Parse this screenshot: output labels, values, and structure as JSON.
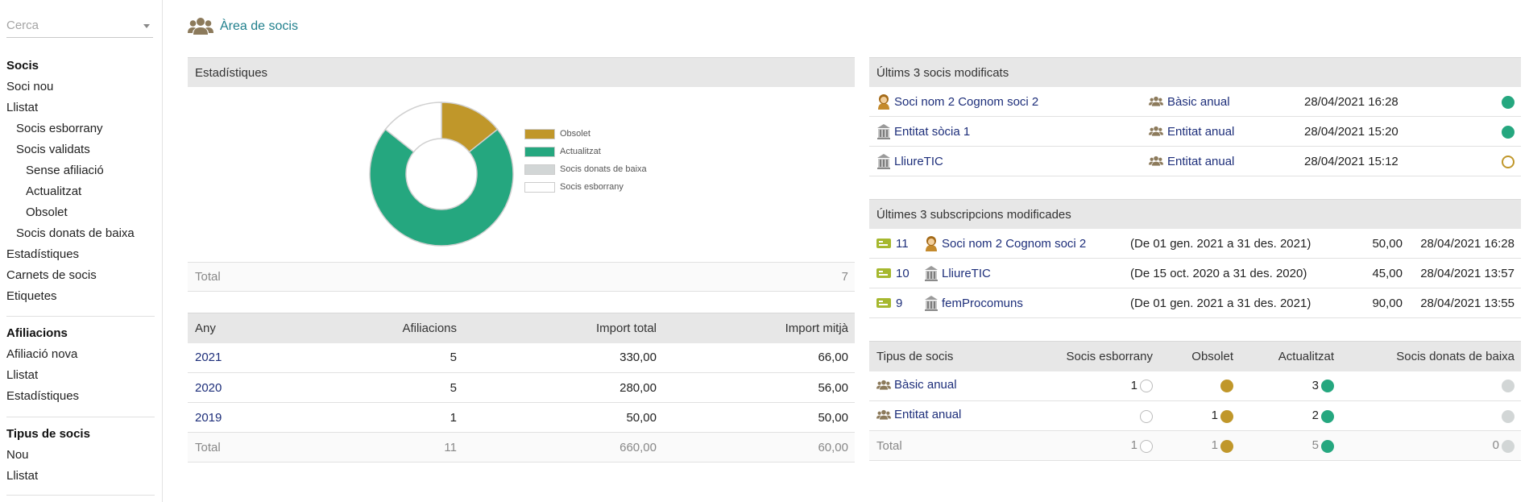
{
  "sidebar": {
    "search_placeholder": "Cerca",
    "sections": [
      {
        "title": "Socis",
        "items": [
          {
            "label": "Soci nou",
            "level": 0
          },
          {
            "label": "Llistat",
            "level": 0
          },
          {
            "label": "Socis esborrany",
            "level": 1
          },
          {
            "label": "Socis validats",
            "level": 1
          },
          {
            "label": "Sense afiliació",
            "level": 2
          },
          {
            "label": "Actualitzat",
            "level": 2
          },
          {
            "label": "Obsolet",
            "level": 2
          },
          {
            "label": "Socis donats de baixa",
            "level": 1
          },
          {
            "label": "Estadístiques",
            "level": 0
          },
          {
            "label": "Carnets de socis",
            "level": 0
          },
          {
            "label": "Etiquetes",
            "level": 0
          }
        ]
      },
      {
        "title": "Afiliacions",
        "items": [
          {
            "label": "Afiliació nova",
            "level": 0
          },
          {
            "label": "Llistat",
            "level": 0
          },
          {
            "label": "Estadístiques",
            "level": 0
          }
        ]
      },
      {
        "title": "Tipus de socis",
        "items": [
          {
            "label": "Nou",
            "level": 0
          },
          {
            "label": "Llistat",
            "level": 0
          }
        ]
      }
    ]
  },
  "header": {
    "title": "Àrea de socis",
    "icon": "users-icon"
  },
  "stats": {
    "heading": "Estadístiques",
    "total_label": "Total",
    "total_value": "7"
  },
  "chart_data": {
    "type": "pie",
    "categories": [
      "Obsolet",
      "Actualitzat",
      "Socis donats de baixa",
      "Socis esborrany"
    ],
    "values": [
      1,
      5,
      0,
      1
    ],
    "colors": [
      "#c0972a",
      "#25a77f",
      "#d2d6d6",
      "#ffffff"
    ],
    "legend_position": "right"
  },
  "affiliations": {
    "headers": [
      "Any",
      "Afiliacions",
      "Import total",
      "Import mitjà"
    ],
    "rows": [
      [
        "2021",
        "5",
        "330,00",
        "66,00"
      ],
      [
        "2020",
        "5",
        "280,00",
        "56,00"
      ],
      [
        "2019",
        "1",
        "50,00",
        "50,00"
      ]
    ],
    "total": [
      "Total",
      "11",
      "660,00",
      "60,00"
    ]
  },
  "last_members": {
    "heading": "Últims 3 socis modificats",
    "rows": [
      {
        "name": "Soci nom 2 Cognom soci 2",
        "avatar": "person-icon",
        "type": "Bàsic anual",
        "date": "28/04/2021 16:28",
        "status": "green"
      },
      {
        "name": "Entitat sòcia 1",
        "avatar": "building-icon",
        "type": "Entitat anual",
        "date": "28/04/2021 15:20",
        "status": "green"
      },
      {
        "name": "LliureTIC",
        "avatar": "building-icon",
        "type": "Entitat anual",
        "date": "28/04/2021 15:12",
        "status": "hollow-gold"
      }
    ]
  },
  "last_subs": {
    "heading": "Últimes 3 subscripcions modificades",
    "rows": [
      {
        "id": "11",
        "name": "Soci nom 2 Cognom soci 2",
        "avatar": "person-icon",
        "period": "(De 01 gen. 2021 a 31 des. 2021)",
        "amount": "50,00",
        "date": "28/04/2021 16:28"
      },
      {
        "id": "10",
        "name": "LliureTIC",
        "avatar": "building-icon",
        "period": "(De 15 oct. 2020 a 31 des. 2020)",
        "amount": "45,00",
        "date": "28/04/2021 13:57"
      },
      {
        "id": "9",
        "name": "femProcomuns",
        "avatar": "building-icon",
        "period": "(De 01 gen. 2021 a 31 des. 2021)",
        "amount": "90,00",
        "date": "28/04/2021 13:55"
      }
    ]
  },
  "member_types": {
    "headers": [
      "Tipus de socis",
      "Socis esborrany",
      "Obsolet",
      "Actualitzat",
      "Socis donats de baixa"
    ],
    "rows": [
      {
        "label": "Bàsic anual",
        "draft": "1",
        "obsolete": "",
        "updated": "3",
        "dropped": ""
      },
      {
        "label": "Entitat anual",
        "draft": "",
        "obsolete": "1",
        "updated": "2",
        "dropped": ""
      }
    ],
    "total": {
      "label": "Total",
      "draft": "1",
      "obsolete": "1",
      "updated": "5",
      "dropped": "0"
    }
  }
}
